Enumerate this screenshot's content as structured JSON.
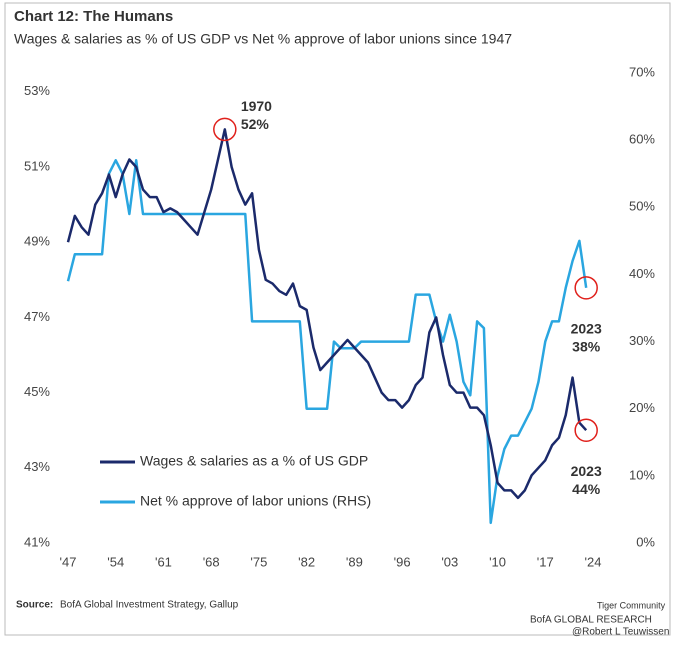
{
  "chart_data": {
    "type": "line",
    "title": "Chart 12: The Humans",
    "subtitle": "Wages & salaries as % of US GDP vs Net % approve of labor unions since 1947",
    "x": [
      1947,
      1948,
      1949,
      1950,
      1951,
      1952,
      1953,
      1954,
      1955,
      1956,
      1957,
      1958,
      1959,
      1960,
      1961,
      1962,
      1963,
      1964,
      1965,
      1966,
      1967,
      1968,
      1969,
      1970,
      1971,
      1972,
      1973,
      1974,
      1975,
      1976,
      1977,
      1978,
      1979,
      1980,
      1981,
      1982,
      1983,
      1984,
      1985,
      1986,
      1987,
      1988,
      1989,
      1990,
      1991,
      1992,
      1993,
      1994,
      1995,
      1996,
      1997,
      1998,
      1999,
      2000,
      2001,
      2002,
      2003,
      2004,
      2005,
      2006,
      2007,
      2008,
      2009,
      2010,
      2011,
      2012,
      2013,
      2014,
      2015,
      2016,
      2017,
      2018,
      2019,
      2020,
      2021,
      2022,
      2023
    ],
    "series": [
      {
        "name": "Wages & salaries as a % of US GDP",
        "color": "#1b2a6b",
        "axis": "y",
        "values": [
          49,
          49.7,
          49.4,
          49.2,
          50.0,
          50.3,
          50.8,
          50.2,
          50.8,
          51.2,
          51.0,
          50.4,
          50.2,
          50.2,
          49.8,
          49.9,
          49.8,
          49.6,
          49.4,
          49.2,
          49.8,
          50.4,
          51.2,
          52.0,
          51.0,
          50.4,
          50.0,
          50.3,
          48.8,
          48.0,
          47.9,
          47.7,
          47.6,
          47.9,
          47.3,
          47.2,
          46.2,
          45.6,
          45.8,
          46.0,
          46.2,
          46.4,
          46.2,
          46.0,
          45.8,
          45.4,
          45.0,
          44.8,
          44.8,
          44.6,
          44.8,
          45.2,
          45.4,
          46.6,
          47.0,
          46.0,
          45.2,
          45.0,
          45.0,
          44.6,
          44.6,
          44.4,
          43.6,
          42.6,
          42.4,
          42.4,
          42.2,
          42.4,
          42.8,
          43.0,
          43.2,
          43.6,
          43.8,
          44.4,
          45.4,
          44.2,
          44.0
        ]
      },
      {
        "name": "Net % approve of labor unions (RHS)",
        "color": "#2aa6e0",
        "axis": "y2",
        "values": [
          39,
          43,
          43,
          43,
          43,
          43,
          55,
          57,
          55,
          49,
          57,
          49,
          49,
          49,
          49,
          49,
          49,
          49,
          49,
          49,
          49,
          49,
          49,
          49,
          49,
          49,
          49,
          33,
          33,
          33,
          33,
          33,
          33,
          33,
          33,
          20,
          20,
          20,
          20,
          30,
          29,
          29,
          29,
          30,
          30,
          30,
          30,
          30,
          30,
          30,
          30,
          37,
          37,
          37,
          33,
          30,
          34,
          30,
          24,
          22,
          33,
          32,
          3,
          10,
          14,
          16,
          16,
          18,
          20,
          24,
          30,
          33,
          33,
          38,
          42,
          45,
          38
        ]
      }
    ],
    "xlim": [
      1947,
      2024
    ],
    "xticks": [
      {
        "value": 1947,
        "label": "'47"
      },
      {
        "value": 1954,
        "label": "'54"
      },
      {
        "value": 1961,
        "label": "'61"
      },
      {
        "value": 1968,
        "label": "'68"
      },
      {
        "value": 1975,
        "label": "'75"
      },
      {
        "value": 1982,
        "label": "'82"
      },
      {
        "value": 1989,
        "label": "'89"
      },
      {
        "value": 1996,
        "label": "'96"
      },
      {
        "value": 2003,
        "label": "'03"
      },
      {
        "value": 2010,
        "label": "'10"
      },
      {
        "value": 2017,
        "label": "'17"
      },
      {
        "value": 2024,
        "label": "'24"
      }
    ],
    "ylim": [
      41,
      53.5
    ],
    "yticks": [
      {
        "value": 41,
        "label": "41%"
      },
      {
        "value": 43,
        "label": "43%"
      },
      {
        "value": 45,
        "label": "45%"
      },
      {
        "value": 47,
        "label": "47%"
      },
      {
        "value": 49,
        "label": "49%"
      },
      {
        "value": 51,
        "label": "51%"
      },
      {
        "value": 53,
        "label": "53%"
      }
    ],
    "y2lim": [
      0,
      70
    ],
    "y2ticks": [
      {
        "value": 0,
        "label": "0%"
      },
      {
        "value": 10,
        "label": "10%"
      },
      {
        "value": 20,
        "label": "20%"
      },
      {
        "value": 30,
        "label": "30%"
      },
      {
        "value": 40,
        "label": "40%"
      },
      {
        "value": 50,
        "label": "50%"
      },
      {
        "value": 60,
        "label": "60%"
      },
      {
        "value": 70,
        "label": "70%"
      }
    ],
    "legend": "lower left",
    "annotations": [
      {
        "x": 1970,
        "y": 52,
        "axis": "y",
        "label": [
          "1970",
          "52%"
        ],
        "color": "#e0201b"
      },
      {
        "x": 2023,
        "y": 38,
        "axis": "y2",
        "label": [
          "2023",
          "38%"
        ],
        "color": "#e0201b"
      },
      {
        "x": 2023,
        "y": 44,
        "axis": "y",
        "label": [
          "2023",
          "44%"
        ],
        "color": "#e0201b"
      }
    ],
    "source_label": "Source:",
    "source": "BofA Global Investment Strategy, Gallup",
    "footer": "BofA GLOBAL RESEARCH",
    "watermark": [
      "Tiger Community",
      "@Robert L Teuwissen"
    ]
  }
}
